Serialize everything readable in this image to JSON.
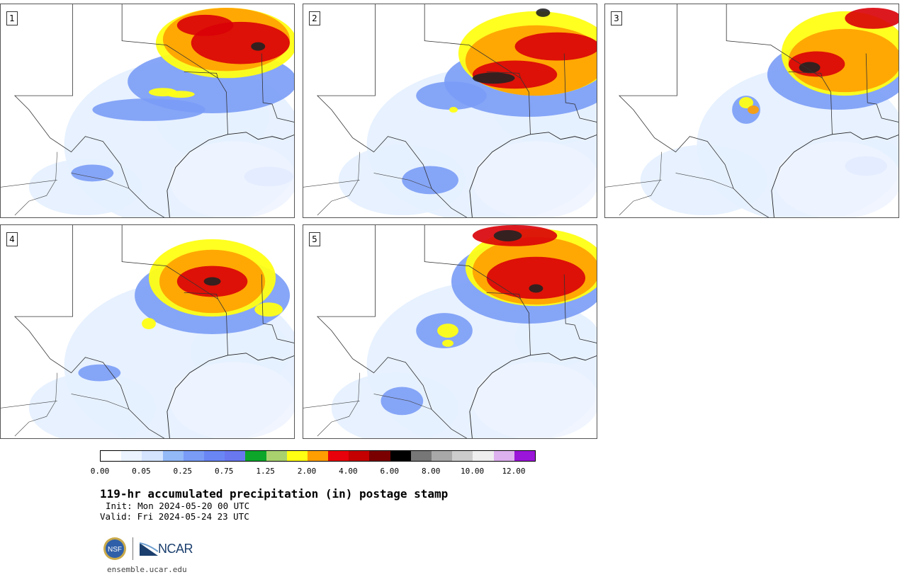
{
  "panels": [
    {
      "label": "1"
    },
    {
      "label": "2"
    },
    {
      "label": "3"
    },
    {
      "label": "4"
    },
    {
      "label": "5"
    }
  ],
  "colorbar": {
    "colors": [
      "#ffffff",
      "#eaf3ff",
      "#d4e4ff",
      "#93b9f7",
      "#7a9cf6",
      "#6a86f5",
      "#6a78f0",
      "#0da62a",
      "#a9d16e",
      "#ffff14",
      "#ff9e00",
      "#e8000a",
      "#c40000",
      "#7a0000",
      "#000000",
      "#777777",
      "#a8a8a8",
      "#cccccc",
      "#eeeeee",
      "#ddb0ee",
      "#9a16d8"
    ],
    "tick_labels": [
      "0.00",
      "0.05",
      "0.25",
      "0.75",
      "1.25",
      "2.00",
      "4.00",
      "6.00",
      "8.00",
      "10.00",
      "12.00"
    ]
  },
  "title": "119-hr accumulated precipitation (in) postage stamp",
  "init": "Init: Mon 2024-05-20 00 UTC",
  "valid": "Valid: Fri 2024-05-24 23 UTC",
  "logos": {
    "nsf": "NSF",
    "ncar": "NCAR"
  },
  "site": "ensemble.ucar.edu"
}
